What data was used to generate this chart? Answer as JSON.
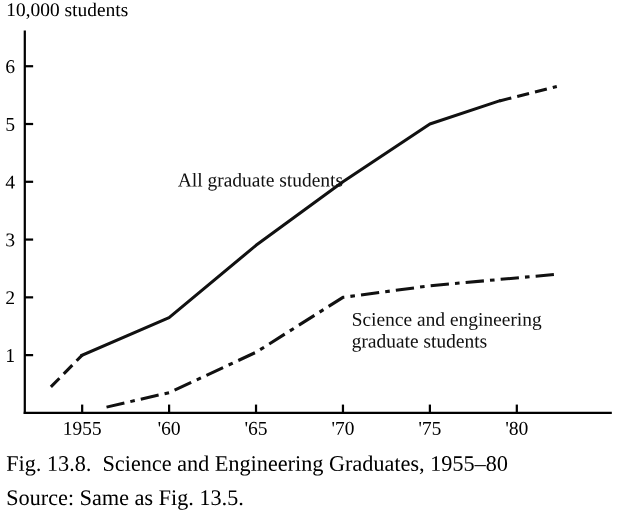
{
  "chart_data": {
    "type": "line",
    "ylabel": "10,000 students",
    "annotations": [
      "Fig. 13.8.  Science and Engineering Graduates, 1955–80",
      "Source: Same as Fig. 13.5."
    ],
    "series": [
      {
        "color": "#111111",
        "line_style": "dashed",
        "x": [
          1953.2,
          1955
        ],
        "values": [
          0.45,
          1.0
        ]
      },
      {
        "name": "All graduate students",
        "color": "#111111",
        "line_style": "solid",
        "x": [
          1955,
          1960,
          1965,
          1970,
          1975,
          1979
        ],
        "values": [
          1.0,
          1.65,
          2.9,
          4.0,
          5.0,
          5.4
        ]
      },
      {
        "color": "#111111",
        "line_style": "dashed",
        "x": [
          1979,
          1982.3
        ],
        "values": [
          5.4,
          5.65
        ]
      },
      {
        "name": "Science and engineering\ngraduate students",
        "color": "#111111",
        "line_style": "dashdot",
        "x": [
          1956.4,
          1960,
          1965,
          1970,
          1975,
          1982.3
        ],
        "values": [
          0.1,
          0.35,
          1.05,
          2.0,
          2.2,
          2.4
        ]
      }
    ],
    "xlim": [
      1951.7,
      1985.4
    ],
    "xticks": [
      {
        "value": 1955,
        "label": "1955"
      },
      {
        "value": 1960,
        "label": "'60"
      },
      {
        "value": 1965,
        "label": "'65"
      },
      {
        "value": 1970,
        "label": "'70"
      },
      {
        "value": 1975,
        "label": "'75"
      },
      {
        "value": 1980,
        "label": "'80"
      }
    ],
    "ylim": [
      0,
      6.6
    ],
    "yticks": [
      1,
      2,
      3,
      4,
      5,
      6
    ],
    "grid": false,
    "legend": false
  }
}
